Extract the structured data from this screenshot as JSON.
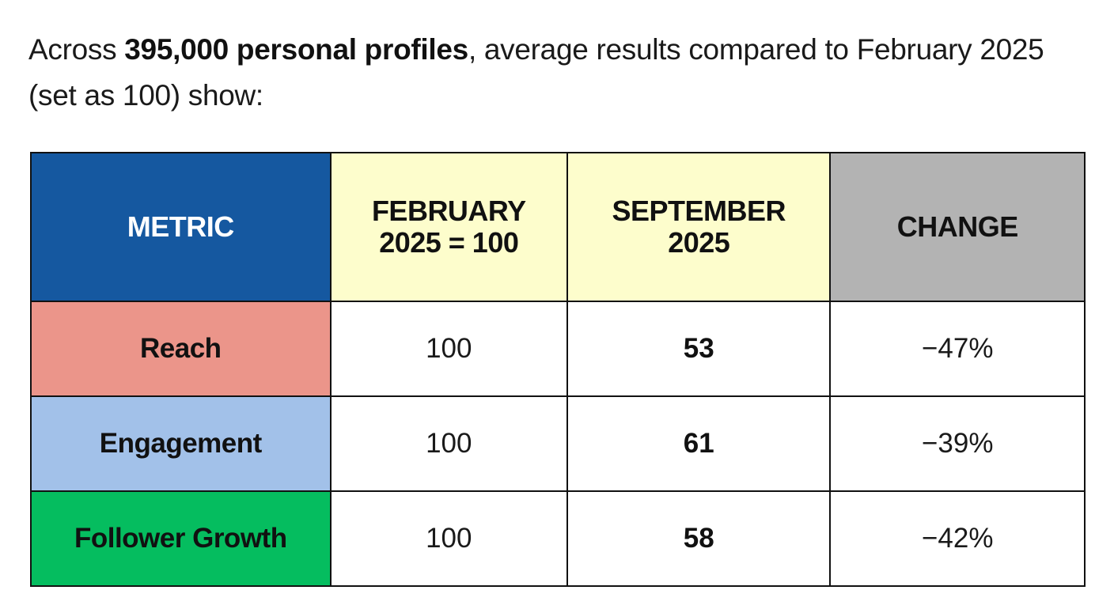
{
  "intro": {
    "prefix": "Across ",
    "highlight": "395,000 personal profiles",
    "suffix": ", average results compared to February 2025  (set as 100)  show:"
  },
  "table": {
    "headers": {
      "metric": "METRIC",
      "feb_line1": "FEBRUARY",
      "feb_line2": "2025 = 100",
      "sep_line1": "SEPTEMBER",
      "sep_line2": "2025",
      "change": "CHANGE"
    },
    "header_colors": {
      "metric": "#1558a0",
      "february": "#fdfdcc",
      "september": "#fdfdcc",
      "change": "#b3b3b3"
    },
    "rows": [
      {
        "metric": "Reach",
        "february": "100",
        "september": "53",
        "change": "−47%",
        "color": "#eb958a"
      },
      {
        "metric": "Engagement",
        "february": "100",
        "september": "61",
        "change": "−39%",
        "color": "#a2c1e9"
      },
      {
        "metric": "Follower Growth",
        "february": "100",
        "september": "58",
        "change": "−42%",
        "color": "#05bd5f"
      }
    ]
  }
}
